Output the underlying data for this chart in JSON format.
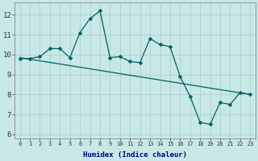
{
  "xlabel": "Humidex (Indice chaleur)",
  "bg_color": "#c8e8e8",
  "grid_major_color": "#b0d0d0",
  "grid_minor_color": "#c0e0e0",
  "line_color": "#006060",
  "xlim": [
    -0.5,
    23.5
  ],
  "ylim": [
    5.8,
    12.6
  ],
  "yticks": [
    6,
    7,
    8,
    9,
    10,
    11,
    12
  ],
  "xticks": [
    0,
    1,
    2,
    3,
    4,
    5,
    6,
    7,
    8,
    9,
    10,
    11,
    12,
    13,
    14,
    15,
    16,
    17,
    18,
    19,
    20,
    21,
    22,
    23
  ],
  "series1_x": [
    0,
    1,
    2,
    3,
    4,
    5,
    6,
    7,
    8,
    9,
    10,
    11,
    12,
    13,
    14,
    15,
    16,
    17,
    18,
    19,
    20,
    21,
    22,
    23
  ],
  "series1_y": [
    9.8,
    9.8,
    9.9,
    10.3,
    10.3,
    9.85,
    11.1,
    11.8,
    12.2,
    9.85,
    9.9,
    9.65,
    9.6,
    10.8,
    10.5,
    10.4,
    8.9,
    7.9,
    6.6,
    6.5,
    7.6,
    7.5,
    8.1,
    8.0
  ],
  "series2_x": [
    0,
    23
  ],
  "series2_y": [
    9.85,
    8.0
  ],
  "markersize": 2.5,
  "linewidth": 0.9
}
